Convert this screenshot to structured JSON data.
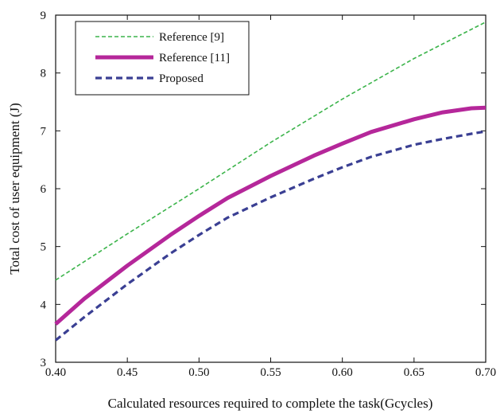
{
  "chart_data": {
    "type": "line",
    "title": "",
    "xlabel": "Calculated resources required to complete the task(Gcycles)",
    "ylabel": "Total cost of user equipment (J)",
    "xlim": [
      0.4,
      0.7
    ],
    "ylim": [
      3,
      9
    ],
    "xticks": [
      "0.40",
      "0.45",
      "0.50",
      "0.55",
      "0.60",
      "0.65",
      "0.70"
    ],
    "yticks": [
      "3",
      "4",
      "5",
      "6",
      "7",
      "8",
      "9"
    ],
    "grid": false,
    "legend_position": "top-left",
    "series": [
      {
        "name": "Reference [9]",
        "color": "#3cb44b",
        "style": "dashed-thin",
        "x": [
          0.4,
          0.45,
          0.5,
          0.55,
          0.6,
          0.65,
          0.7
        ],
        "y": [
          4.42,
          5.22,
          6.0,
          6.8,
          7.55,
          8.25,
          8.88
        ]
      },
      {
        "name": "Reference [11]",
        "color": "#b5279a",
        "style": "solid-thick",
        "x": [
          0.4,
          0.42,
          0.45,
          0.48,
          0.5,
          0.52,
          0.55,
          0.58,
          0.6,
          0.62,
          0.65,
          0.67,
          0.69,
          0.7
        ],
        "y": [
          3.66,
          4.1,
          4.67,
          5.2,
          5.53,
          5.84,
          6.22,
          6.57,
          6.78,
          6.98,
          7.2,
          7.32,
          7.39,
          7.4
        ]
      },
      {
        "name": "Proposed",
        "color": "#3a3f93",
        "style": "dashed-thick",
        "x": [
          0.4,
          0.42,
          0.45,
          0.48,
          0.5,
          0.52,
          0.55,
          0.58,
          0.6,
          0.62,
          0.65,
          0.67,
          0.69,
          0.7
        ],
        "y": [
          3.38,
          3.78,
          4.35,
          4.88,
          5.2,
          5.5,
          5.85,
          6.17,
          6.37,
          6.55,
          6.76,
          6.86,
          6.95,
          6.99
        ]
      }
    ]
  }
}
